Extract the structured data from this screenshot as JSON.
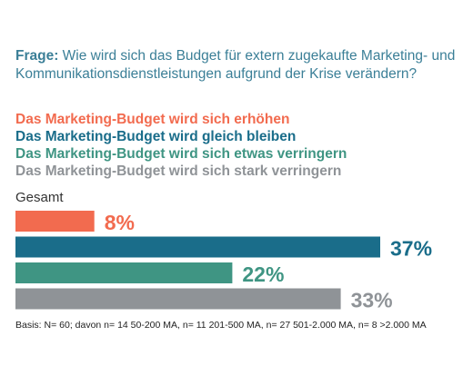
{
  "question": {
    "label": "Frage:",
    "text": " Wie wird sich das Budget für extern zugekaufte Marketing- und Kommunikationsdienstleistungen aufgrund der Krise verändern?"
  },
  "footnote": "Basis: N= 60; davon n= 14 50-200 MA, n= 11 201-500 MA, n= 27 501-2.000 MA, n= 8 >2.000 MA",
  "colors": {
    "erhoehen": "#f26b4f",
    "gleich": "#1a6d8a",
    "etwas": "#3f9583",
    "stark": "#8f9397",
    "question": "#3b7f97"
  },
  "chart_data": {
    "type": "bar",
    "orientation": "horizontal",
    "group_label": "Gesamt",
    "legend_position": "top",
    "grid": false,
    "xlim": [
      0,
      37
    ],
    "series": [
      {
        "name": "Das Marketing-Budget wird sich erhöhen",
        "value": 8,
        "label": "8%",
        "color": "#f26b4f"
      },
      {
        "name": "Das Marketing-Budget wird gleich bleiben",
        "value": 37,
        "label": "37%",
        "color": "#1a6d8a"
      },
      {
        "name": "Das Marketing-Budget wird sich etwas verringern",
        "value": 22,
        "label": "22%",
        "color": "#3f9583"
      },
      {
        "name": "Das Marketing-Budget wird sich stark verringern",
        "value": 33,
        "label": "33%",
        "color": "#8f9397"
      }
    ]
  }
}
